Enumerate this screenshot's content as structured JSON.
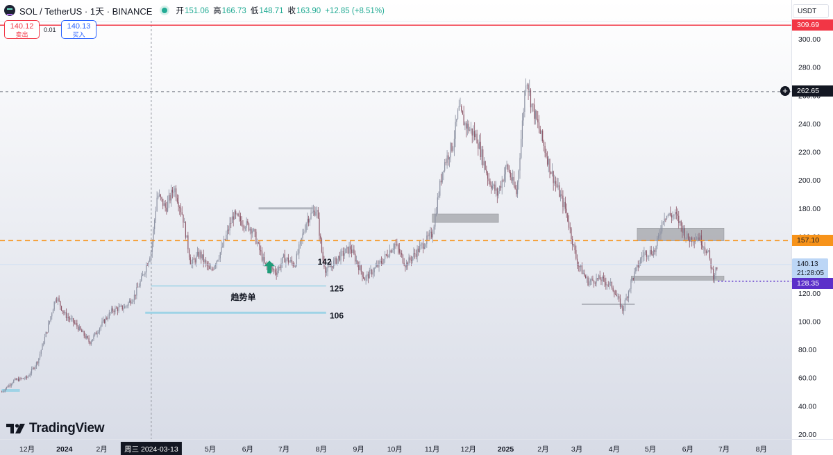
{
  "header": {
    "symbol": "SOL / TetherUS · 1天 · BINANCE",
    "open_label": "开",
    "open": "151.06",
    "high_label": "高",
    "high": "166.73",
    "low_label": "低",
    "low": "148.71",
    "close_label": "收",
    "close": "163.90",
    "change": "+12.85 (+8.51%)"
  },
  "trade": {
    "sell_price": "140.12",
    "sell_label": "卖出",
    "spread": "0.01",
    "buy_price": "140.13",
    "buy_label": "买入"
  },
  "currency": "USDT",
  "branding": "TradingView",
  "price_labels": {
    "top_line": "309.69",
    "crosshair": "262.65",
    "orange_line": "157.10",
    "current_price": "140.13",
    "countdown": "21:28:05",
    "purple_line": "128.35"
  },
  "chart_data": {
    "type": "candlestick",
    "ylim": [
      20,
      320
    ],
    "y_ticks": [
      20,
      40,
      60,
      80,
      100,
      120,
      140,
      160,
      180,
      200,
      220,
      240,
      260,
      280,
      300
    ],
    "x_ticks": [
      {
        "label": "12月",
        "date": "2023-12-01"
      },
      {
        "label": "2024",
        "date": "2024-01-01",
        "bold": true
      },
      {
        "label": "2月",
        "date": "2024-02-01"
      },
      {
        "label": "周三 2024-03-13",
        "date": "2024-03-13",
        "highlight": true
      },
      {
        "label": "5月",
        "date": "2024-05-01"
      },
      {
        "label": "6月",
        "date": "2024-06-01"
      },
      {
        "label": "7月",
        "date": "2024-07-01"
      },
      {
        "label": "8月",
        "date": "2024-08-01"
      },
      {
        "label": "9月",
        "date": "2024-09-01"
      },
      {
        "label": "10月",
        "date": "2024-10-01"
      },
      {
        "label": "11月",
        "date": "2024-11-01"
      },
      {
        "label": "12月",
        "date": "2024-12-01"
      },
      {
        "label": "2025",
        "date": "2025-01-01",
        "bold": true
      },
      {
        "label": "2月",
        "date": "2025-02-01"
      },
      {
        "label": "3月",
        "date": "2025-03-01"
      },
      {
        "label": "4月",
        "date": "2025-04-01"
      },
      {
        "label": "5月",
        "date": "2025-05-01"
      },
      {
        "label": "6月",
        "date": "2025-06-01"
      },
      {
        "label": "7月",
        "date": "2025-07-01"
      },
      {
        "label": "8月",
        "date": "2025-08-01"
      }
    ],
    "price_path": [
      [
        "2023-11-10",
        50
      ],
      [
        "2023-11-20",
        58
      ],
      [
        "2023-12-01",
        60
      ],
      [
        "2023-12-10",
        72
      ],
      [
        "2023-12-18",
        95
      ],
      [
        "2023-12-25",
        118
      ],
      [
        "2024-01-01",
        105
      ],
      [
        "2024-01-10",
        98
      ],
      [
        "2024-01-22",
        85
      ],
      [
        "2024-02-01",
        98
      ],
      [
        "2024-02-10",
        108
      ],
      [
        "2024-02-20",
        110
      ],
      [
        "2024-02-28",
        118
      ],
      [
        "2024-03-05",
        130
      ],
      [
        "2024-03-13",
        150
      ],
      [
        "2024-03-18",
        190
      ],
      [
        "2024-03-25",
        180
      ],
      [
        "2024-04-01",
        195
      ],
      [
        "2024-04-08",
        175
      ],
      [
        "2024-04-15",
        140
      ],
      [
        "2024-04-22",
        148
      ],
      [
        "2024-05-01",
        135
      ],
      [
        "2024-05-10",
        150
      ],
      [
        "2024-05-20",
        175
      ],
      [
        "2024-05-28",
        170
      ],
      [
        "2024-06-05",
        165
      ],
      [
        "2024-06-15",
        140
      ],
      [
        "2024-06-25",
        135
      ],
      [
        "2024-07-01",
        145
      ],
      [
        "2024-07-10",
        140
      ],
      [
        "2024-07-20",
        172
      ],
      [
        "2024-07-28",
        180
      ],
      [
        "2024-08-02",
        145
      ],
      [
        "2024-08-05",
        135
      ],
      [
        "2024-08-15",
        145
      ],
      [
        "2024-08-25",
        152
      ],
      [
        "2024-09-06",
        130
      ],
      [
        "2024-09-20",
        142
      ],
      [
        "2024-10-01",
        155
      ],
      [
        "2024-10-10",
        140
      ],
      [
        "2024-10-20",
        150
      ],
      [
        "2024-11-01",
        162
      ],
      [
        "2024-11-10",
        210
      ],
      [
        "2024-11-18",
        225
      ],
      [
        "2024-11-23",
        250
      ],
      [
        "2024-11-28",
        240
      ],
      [
        "2024-12-08",
        230
      ],
      [
        "2024-12-18",
        200
      ],
      [
        "2024-12-25",
        190
      ],
      [
        "2025-01-02",
        210
      ],
      [
        "2025-01-10",
        190
      ],
      [
        "2025-01-18",
        275
      ],
      [
        "2025-01-22",
        255
      ],
      [
        "2025-01-30",
        232
      ],
      [
        "2025-02-08",
        205
      ],
      [
        "2025-02-20",
        178
      ],
      [
        "2025-03-01",
        142
      ],
      [
        "2025-03-10",
        128
      ],
      [
        "2025-03-20",
        130
      ],
      [
        "2025-03-30",
        125
      ],
      [
        "2025-04-08",
        108
      ],
      [
        "2025-04-15",
        128
      ],
      [
        "2025-04-25",
        148
      ],
      [
        "2025-05-05",
        150
      ],
      [
        "2025-05-12",
        175
      ],
      [
        "2025-05-22",
        175
      ],
      [
        "2025-06-01",
        158
      ],
      [
        "2025-06-10",
        160
      ],
      [
        "2025-06-18",
        148
      ],
      [
        "2025-06-22",
        132
      ],
      [
        "2025-06-26",
        140
      ]
    ],
    "horizontal_lines": [
      {
        "price": 309.69,
        "color": "#f23645",
        "style": "solid"
      },
      {
        "price": 262.65,
        "color": "#9598a1",
        "style": "dashed"
      },
      {
        "price": 157.1,
        "color": "#f7931a",
        "style": "dashed"
      },
      {
        "price": 128.35,
        "color": "#5b2fc9",
        "style": "dotted"
      }
    ],
    "zones": [
      {
        "from": "2024-11-01",
        "to": "2024-12-26",
        "low": 170,
        "high": 176
      },
      {
        "from": "2025-04-20",
        "to": "2025-07-01",
        "low": 157,
        "high": 166
      },
      {
        "from": "2025-04-15",
        "to": "2025-07-01",
        "low": 129,
        "high": 132
      }
    ],
    "drawn_lines": [
      {
        "from": "2024-03-13",
        "to": "2024-08-05",
        "price": 125,
        "color": "#9ed3e6",
        "width": 1.5
      },
      {
        "from": "2024-03-08",
        "to": "2024-08-05",
        "price": 106,
        "color": "#9ed3e6",
        "width": 3
      },
      {
        "from": "2024-06-10",
        "to": "2024-07-25",
        "price": 180,
        "color": "#b2b5be",
        "width": 3
      },
      {
        "from": "2025-03-05",
        "to": "2025-04-18",
        "price": 112,
        "color": "#b2b5be",
        "width": 2
      },
      {
        "from": "2023-11-10",
        "to": "2023-11-25",
        "price": 51,
        "color": "#9ed3e6",
        "width": 4
      }
    ],
    "annotations": [
      {
        "text": "142",
        "date": "2024-07-29",
        "price": 142
      },
      {
        "text": "125",
        "date": "2024-08-08",
        "price": 123
      },
      {
        "text": "106",
        "date": "2024-08-08",
        "price": 104
      },
      {
        "text": "趋势单",
        "date": "2024-05-18",
        "price": 117
      }
    ],
    "arrow": {
      "date": "2024-06-19",
      "price": 138,
      "color": "#1f9d7a"
    },
    "crosshair_date": "2024-03-13"
  }
}
